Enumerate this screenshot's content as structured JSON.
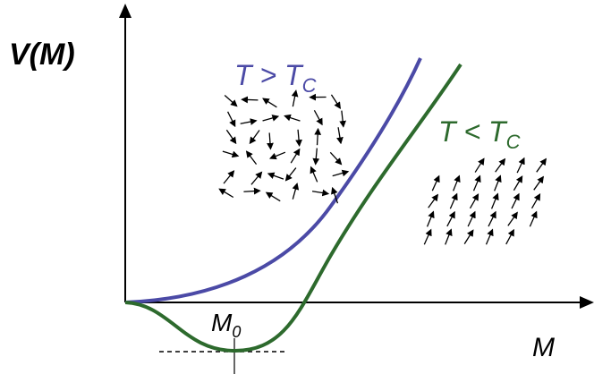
{
  "axes": {
    "y_label": "V(M)",
    "x_label": "M"
  },
  "curves": [
    {
      "label": "T > T",
      "subscript": "C",
      "color": "#4b4aa6"
    },
    {
      "label": "T < T",
      "subscript": "C",
      "color": "#2d6a2d"
    }
  ],
  "minimum": {
    "label": "M",
    "subscript": "0"
  }
}
